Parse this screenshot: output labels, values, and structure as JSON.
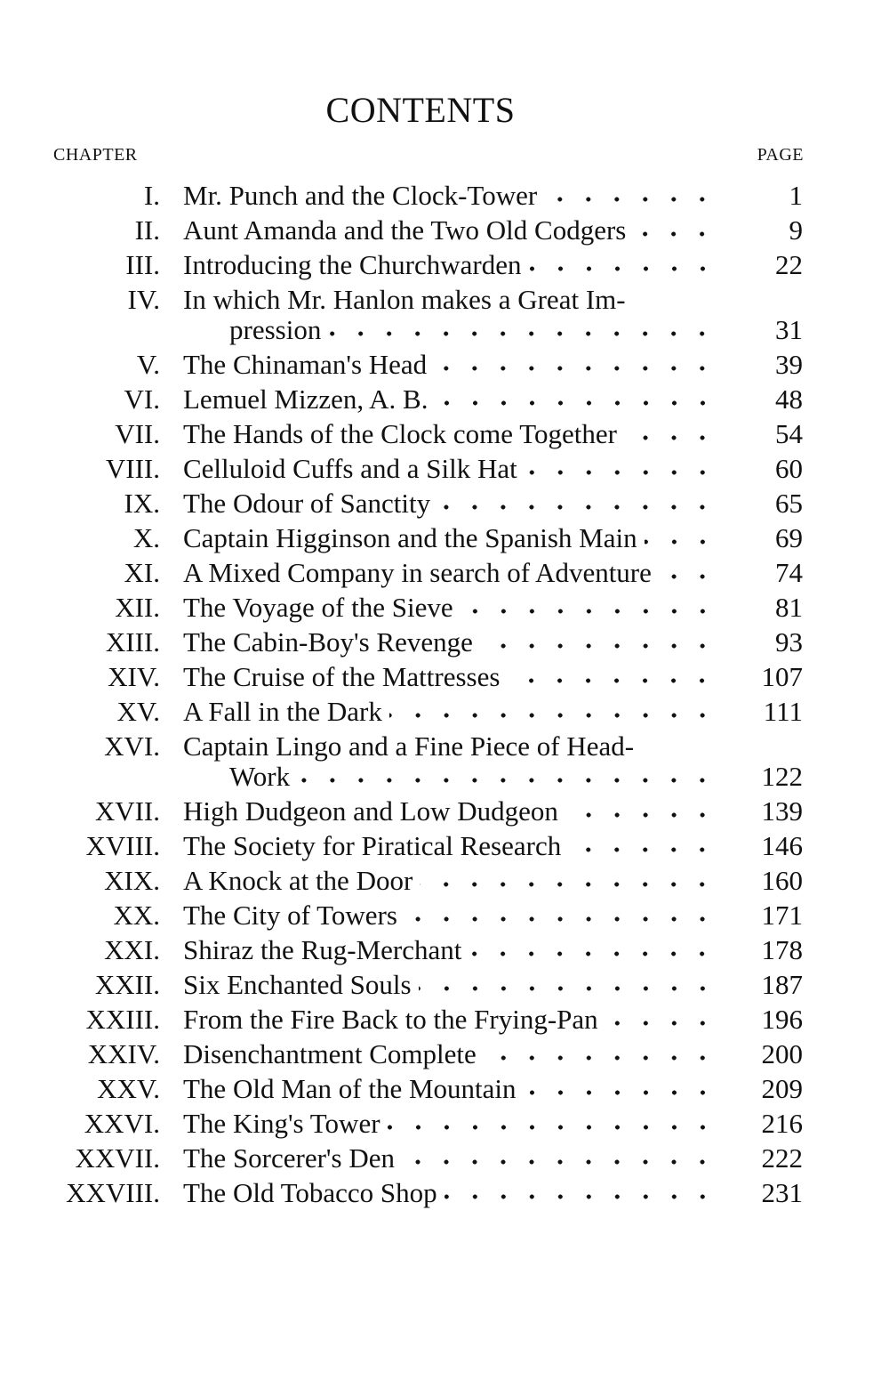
{
  "title": "CONTENTS",
  "headers": {
    "chapter": "CHAPTER",
    "page": "PAGE"
  },
  "entries": [
    {
      "num": "I.",
      "title": "Mr. Punch and the Clock-Tower",
      "page": "1"
    },
    {
      "num": "II.",
      "title": "Aunt Amanda and the Two Old Codgers",
      "page": "9"
    },
    {
      "num": "III.",
      "title": "Introducing the Churchwarden",
      "page": "22"
    },
    {
      "num": "IV.",
      "title": "In which Mr. Hanlon makes a Great Im-",
      "title2": "pression",
      "page": "31"
    },
    {
      "num": "V.",
      "title": "The Chinaman's Head",
      "page": "39"
    },
    {
      "num": "VI.",
      "title": "Lemuel Mizzen, A. B.",
      "page": "48"
    },
    {
      "num": "VII.",
      "title": "The Hands of the Clock come Together",
      "page": "54"
    },
    {
      "num": "VIII.",
      "title": "Celluloid Cuffs and a Silk Hat",
      "page": "60"
    },
    {
      "num": "IX.",
      "title": "The Odour of Sanctity",
      "page": "65"
    },
    {
      "num": "X.",
      "title": "Captain Higginson and the Spanish Main",
      "page": "69"
    },
    {
      "num": "XI.",
      "title": "A Mixed Company in search of Adventure",
      "page": "74"
    },
    {
      "num": "XII.",
      "title": "The Voyage of the Sieve",
      "page": "81"
    },
    {
      "num": "XIII.",
      "title": "The Cabin-Boy's Revenge",
      "page": "93"
    },
    {
      "num": "XIV.",
      "title": "The Cruise of the Mattresses",
      "page": "107"
    },
    {
      "num": "XV.",
      "title": "A Fall in the Dark",
      "page": "111"
    },
    {
      "num": "XVI.",
      "title": "Captain Lingo and a Fine Piece of Head-",
      "title2": "Work",
      "page": "122"
    },
    {
      "num": "XVII.",
      "title": "High Dudgeon and Low Dudgeon",
      "page": "139"
    },
    {
      "num": "XVIII.",
      "title": "The Society for Piratical Research",
      "page": "146"
    },
    {
      "num": "XIX.",
      "title": "A Knock at the Door",
      "page": "160"
    },
    {
      "num": "XX.",
      "title": "The City of Towers",
      "page": "171"
    },
    {
      "num": "XXI.",
      "title": "Shiraz the Rug-Merchant",
      "page": "178"
    },
    {
      "num": "XXII.",
      "title": "Six Enchanted Souls",
      "page": "187"
    },
    {
      "num": "XXIII.",
      "title": "From the Fire Back to the Frying-Pan",
      "page": "196"
    },
    {
      "num": "XXIV.",
      "title": "Disenchantment Complete",
      "page": "200"
    },
    {
      "num": "XXV.",
      "title": "The Old Man of the Mountain",
      "page": "209"
    },
    {
      "num": "XXVI.",
      "title": "The King's Tower",
      "page": "216"
    },
    {
      "num": "XXVII.",
      "title": "The Sorcerer's Den",
      "page": "222"
    },
    {
      "num": "XXVIII.",
      "title": "The Old Tobacco Shop",
      "page": "231"
    }
  ]
}
